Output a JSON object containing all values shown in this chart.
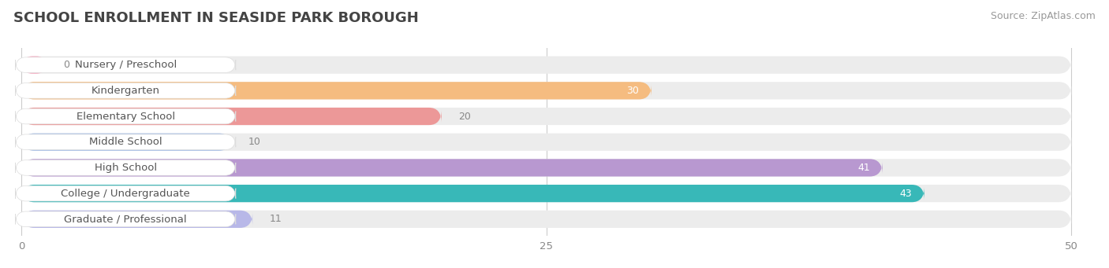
{
  "title": "SCHOOL ENROLLMENT IN SEASIDE PARK BOROUGH",
  "source": "Source: ZipAtlas.com",
  "categories": [
    "Nursery / Preschool",
    "Kindergarten",
    "Elementary School",
    "Middle School",
    "High School",
    "College / Undergraduate",
    "Graduate / Professional"
  ],
  "values": [
    0,
    30,
    20,
    10,
    41,
    43,
    11
  ],
  "bar_colors": [
    "#f7a8bf",
    "#f5bc80",
    "#ec9898",
    "#a8c0e8",
    "#b898d0",
    "#38b8b8",
    "#b8b8e8"
  ],
  "bar_bg_color": "#ececec",
  "label_bg_color": "#ffffff",
  "value_inside_color": "#ffffff",
  "value_outside_color": "#888888",
  "value_inside_threshold": 25,
  "xlim_max": 50,
  "xticks": [
    0,
    25,
    50
  ],
  "title_fontsize": 13,
  "source_fontsize": 9,
  "label_fontsize": 9.5,
  "value_fontsize": 9,
  "bar_height": 0.68,
  "background_color": "#ffffff",
  "grid_color": "#cccccc",
  "title_color": "#444444",
  "source_color": "#999999",
  "label_text_color": "#555555",
  "tick_color": "#888888"
}
